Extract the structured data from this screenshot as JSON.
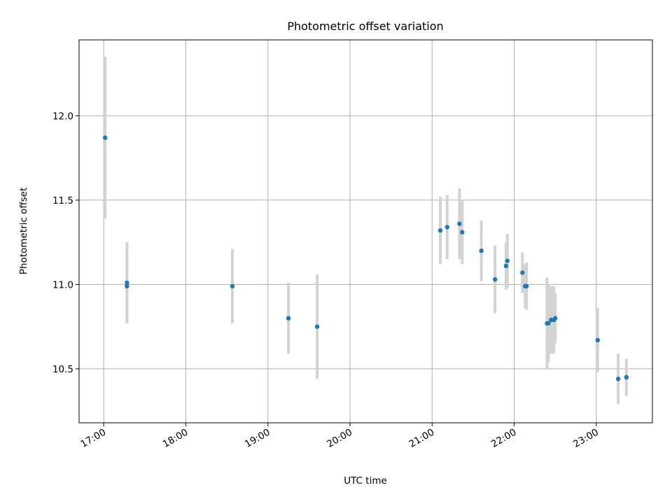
{
  "chart_data": {
    "type": "scatter",
    "title": "Photometric offset variation",
    "xlabel": "UTC time",
    "ylabel": "Photometric offset",
    "x_tick_labels": [
      "17:00",
      "18:00",
      "19:00",
      "20:00",
      "21:00",
      "22:00",
      "23:00"
    ],
    "y_tick_labels": [
      "10.5",
      "11.0",
      "11.5",
      "12.0"
    ],
    "xlim": [
      "16:42",
      "23:41"
    ],
    "ylim": [
      10.18,
      12.45
    ],
    "grid": true,
    "point_color": "#1f77b4",
    "error_bar_color": "#d3d3d3",
    "points": [
      {
        "x": "17:01",
        "y": 11.87,
        "yerr": 0.48
      },
      {
        "x": "17:17",
        "y": 10.99,
        "yerr": 0.21
      },
      {
        "x": "17:17",
        "y": 11.01,
        "yerr": 0.24
      },
      {
        "x": "18:34",
        "y": 10.99,
        "yerr": 0.22
      },
      {
        "x": "19:15",
        "y": 10.8,
        "yerr": 0.21
      },
      {
        "x": "19:36",
        "y": 10.75,
        "yerr": 0.31
      },
      {
        "x": "21:06",
        "y": 11.32,
        "yerr": 0.2
      },
      {
        "x": "21:11",
        "y": 11.34,
        "yerr": 0.19
      },
      {
        "x": "21:20",
        "y": 11.36,
        "yerr": 0.21
      },
      {
        "x": "21:22",
        "y": 11.31,
        "yerr": 0.19
      },
      {
        "x": "21:36",
        "y": 11.2,
        "yerr": 0.18
      },
      {
        "x": "21:46",
        "y": 11.03,
        "yerr": 0.2
      },
      {
        "x": "21:54",
        "y": 11.11,
        "yerr": 0.14
      },
      {
        "x": "21:55",
        "y": 11.14,
        "yerr": 0.16
      },
      {
        "x": "22:06",
        "y": 11.07,
        "yerr": 0.12
      },
      {
        "x": "22:08",
        "y": 10.99,
        "yerr": 0.13
      },
      {
        "x": "22:09",
        "y": 10.99,
        "yerr": 0.14
      },
      {
        "x": "22:24",
        "y": 10.77,
        "yerr": 0.27
      },
      {
        "x": "22:25",
        "y": 10.77,
        "yerr": 0.23
      },
      {
        "x": "22:27",
        "y": 10.79,
        "yerr": 0.2
      },
      {
        "x": "22:29",
        "y": 10.79,
        "yerr": 0.2
      },
      {
        "x": "22:30",
        "y": 10.8,
        "yerr": 0.15
      },
      {
        "x": "23:01",
        "y": 10.67,
        "yerr": 0.19
      },
      {
        "x": "23:16",
        "y": 10.44,
        "yerr": 0.15
      },
      {
        "x": "23:22",
        "y": 10.45,
        "yerr": 0.11
      }
    ]
  }
}
